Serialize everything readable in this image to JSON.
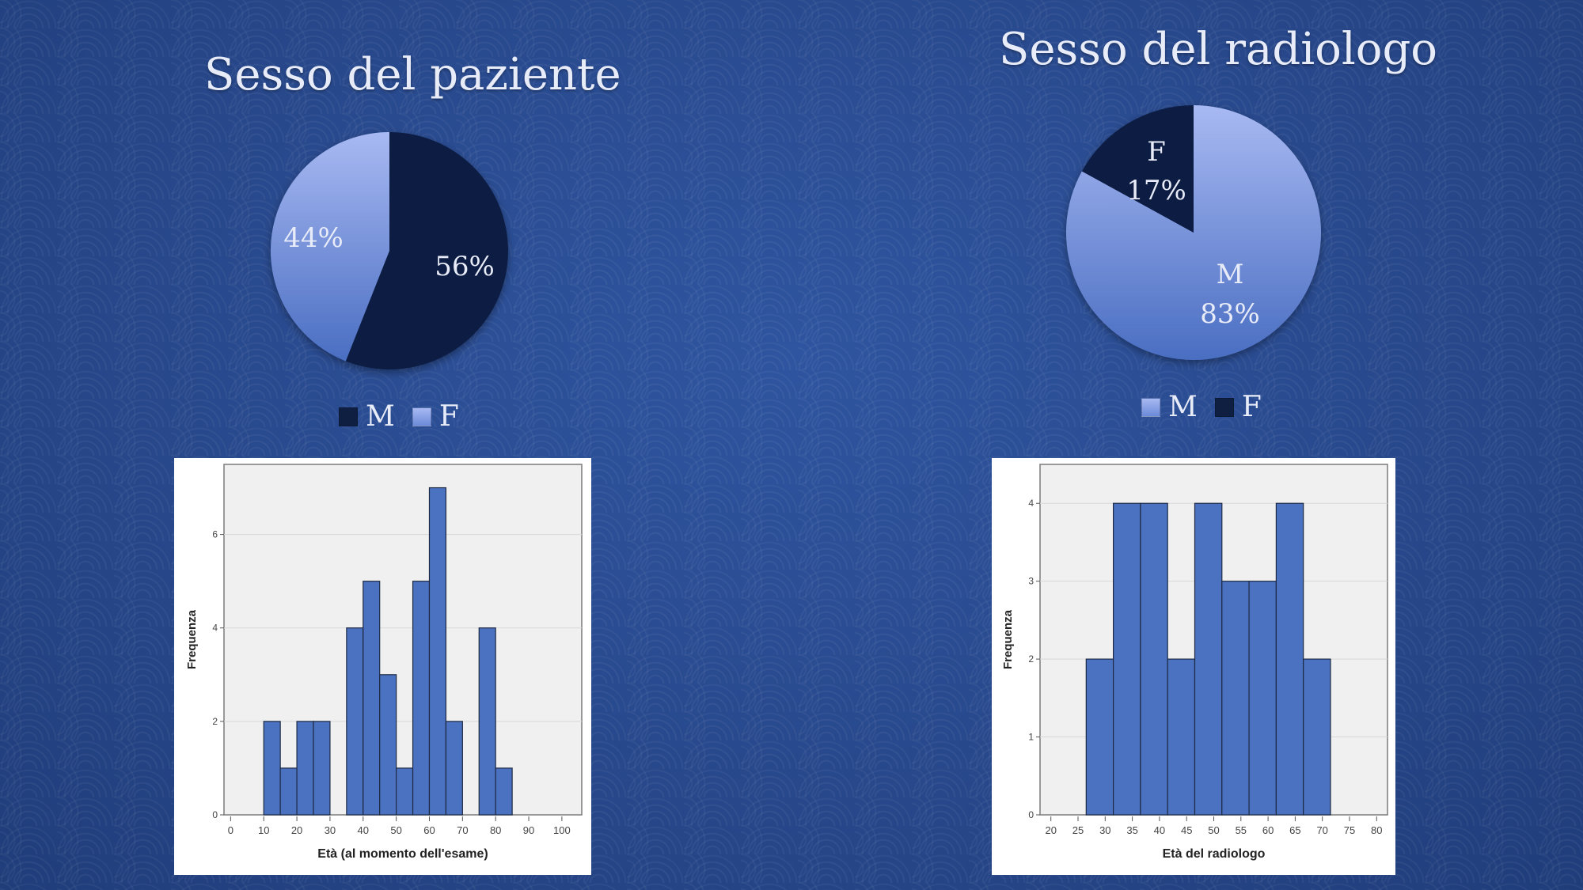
{
  "titles": {
    "patient_sex": "Sesso del paziente",
    "radiologist_sex": "Sesso del radiologo"
  },
  "colors": {
    "dark_navy": "#0f1f42",
    "light_blue_top": "#a8b9f2",
    "light_blue_bottom": "#4a6ec2",
    "bar_fill": "#4a72c0",
    "plot_bg": "#f0f0f0",
    "text_light": "#e8ecf8"
  },
  "chart_data": [
    {
      "type": "pie",
      "title": "Sesso del paziente",
      "slices": [
        {
          "label": "M",
          "value": 56,
          "display": "56%"
        },
        {
          "label": "F",
          "value": 44,
          "display": "44%"
        }
      ],
      "legend": [
        "M",
        "F"
      ],
      "legend_position": "bottom"
    },
    {
      "type": "pie",
      "title": "Sesso del radiologo",
      "slices": [
        {
          "label": "M",
          "value": 83,
          "display": "83%"
        },
        {
          "label": "F",
          "value": 17,
          "display": "17%"
        }
      ],
      "legend": [
        "M",
        "F"
      ],
      "legend_position": "bottom"
    },
    {
      "type": "bar",
      "subtype": "histogram",
      "xlabel": "Età (al momento dell'esame)",
      "ylabel": "Frequenza",
      "xlim": [
        -2,
        106
      ],
      "ylim": [
        0,
        7.5
      ],
      "xticks": [
        0,
        10,
        20,
        30,
        40,
        50,
        60,
        70,
        80,
        90,
        100
      ],
      "yticks": [
        0,
        2,
        4,
        6
      ],
      "bin_width": 5,
      "bins": [
        {
          "start": 10,
          "count": 2
        },
        {
          "start": 15,
          "count": 1
        },
        {
          "start": 20,
          "count": 2
        },
        {
          "start": 25,
          "count": 2
        },
        {
          "start": 35,
          "count": 4
        },
        {
          "start": 40,
          "count": 5
        },
        {
          "start": 45,
          "count": 3
        },
        {
          "start": 50,
          "count": 1
        },
        {
          "start": 55,
          "count": 5
        },
        {
          "start": 60,
          "count": 7
        },
        {
          "start": 65,
          "count": 2
        },
        {
          "start": 75,
          "count": 4
        },
        {
          "start": 80,
          "count": 1
        }
      ],
      "grid": true
    },
    {
      "type": "bar",
      "subtype": "histogram",
      "xlabel": "Età del radiologo",
      "ylabel": "Frequenza",
      "xlim": [
        18,
        82
      ],
      "ylim": [
        0,
        4.5
      ],
      "xticks": [
        20,
        25,
        30,
        35,
        40,
        45,
        50,
        55,
        60,
        65,
        70,
        75,
        80
      ],
      "yticks": [
        0,
        1,
        2,
        3,
        4
      ],
      "bin_width": 5,
      "bins": [
        {
          "start": 26.5,
          "count": 2
        },
        {
          "start": 31.5,
          "count": 4
        },
        {
          "start": 36.5,
          "count": 4
        },
        {
          "start": 41.5,
          "count": 2
        },
        {
          "start": 46.5,
          "count": 4
        },
        {
          "start": 51.5,
          "count": 3
        },
        {
          "start": 56.5,
          "count": 3
        },
        {
          "start": 61.5,
          "count": 4
        },
        {
          "start": 66.5,
          "count": 2
        }
      ],
      "grid": true
    }
  ]
}
